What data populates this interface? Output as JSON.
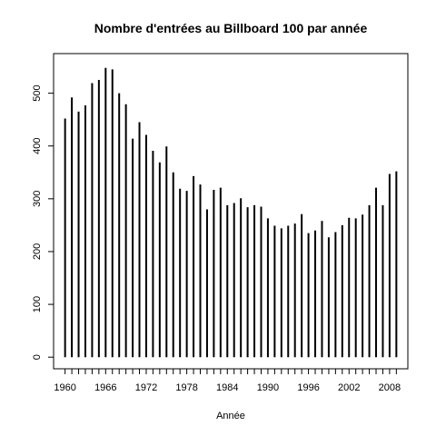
{
  "chart_data": {
    "type": "bar",
    "style": "histogram-spikes",
    "title": "Nombre d'entrées au Billboard 100 par année",
    "xlabel": "Année",
    "ylabel": "",
    "x": [
      1960,
      1961,
      1962,
      1963,
      1964,
      1965,
      1966,
      1967,
      1968,
      1969,
      1970,
      1971,
      1972,
      1973,
      1974,
      1975,
      1976,
      1977,
      1978,
      1979,
      1980,
      1981,
      1982,
      1983,
      1984,
      1985,
      1986,
      1987,
      1988,
      1989,
      1990,
      1991,
      1992,
      1993,
      1994,
      1995,
      1996,
      1997,
      1998,
      1999,
      2000,
      2001,
      2002,
      2003,
      2004,
      2005,
      2006,
      2007,
      2008,
      2009
    ],
    "values": [
      452,
      492,
      465,
      477,
      519,
      525,
      548,
      545,
      500,
      479,
      414,
      445,
      421,
      391,
      369,
      399,
      350,
      319,
      315,
      343,
      327,
      280,
      317,
      321,
      288,
      292,
      301,
      284,
      288,
      285,
      263,
      249,
      244,
      249,
      253,
      271,
      235,
      240,
      258,
      227,
      237,
      250,
      264,
      263,
      270,
      288,
      321,
      288,
      347,
      352
    ],
    "xticks": [
      "1960",
      "1966",
      "1972",
      "1978",
      "1984",
      "1990",
      "1996",
      "2002",
      "2008"
    ],
    "yticks": [
      "0",
      "100",
      "200",
      "300",
      "400",
      "500"
    ],
    "xlim": [
      1958.3,
      2010.7
    ],
    "ylim": [
      -22,
      575
    ],
    "grid": false,
    "color": "#000000"
  }
}
